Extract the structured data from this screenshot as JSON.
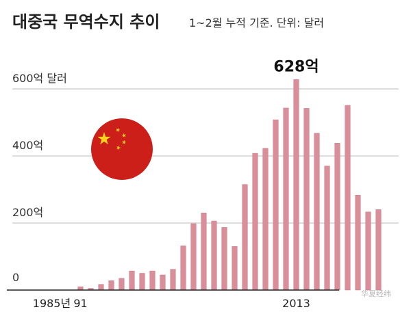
{
  "header": {
    "title": "대중국 무역수지 추이",
    "subtitle": "1~2월 누적 기준. 단위: 달러"
  },
  "watermark": "华夏经纬",
  "colors": {
    "bar": "#d98e99",
    "bar_stroke": "#c77683",
    "grid": "#bdbdbd",
    "baseline": "#222222",
    "flag_red": "#cc1f1a",
    "flag_star": "#f7d31c"
  },
  "chart_data": {
    "type": "bar",
    "title": "대중국 무역수지 추이",
    "subtitle": "1~2월 누적 기준. 단위: 달러",
    "unit": "억 달러",
    "ylim": [
      0,
      680
    ],
    "y_ticks": [
      {
        "value": 0,
        "label": "0"
      },
      {
        "value": 200,
        "label": "200억"
      },
      {
        "value": 400,
        "label": "400억"
      },
      {
        "value": 600,
        "label": "600억 달러"
      }
    ],
    "x_tick_labels": [
      "1985년",
      "91",
      "2013"
    ],
    "grid": true,
    "series": [
      {
        "values": [
          0,
          0,
          0,
          0,
          0,
          0,
          10,
          5,
          17,
          28,
          35,
          57,
          50,
          57,
          45,
          62,
          132,
          198,
          230,
          206,
          187,
          130,
          315,
          408,
          423,
          508,
          543,
          628,
          542,
          468,
          370,
          438,
          551,
          283,
          233,
          240
        ]
      }
    ],
    "annotations": [
      {
        "text": "628억",
        "value": 628
      }
    ]
  }
}
